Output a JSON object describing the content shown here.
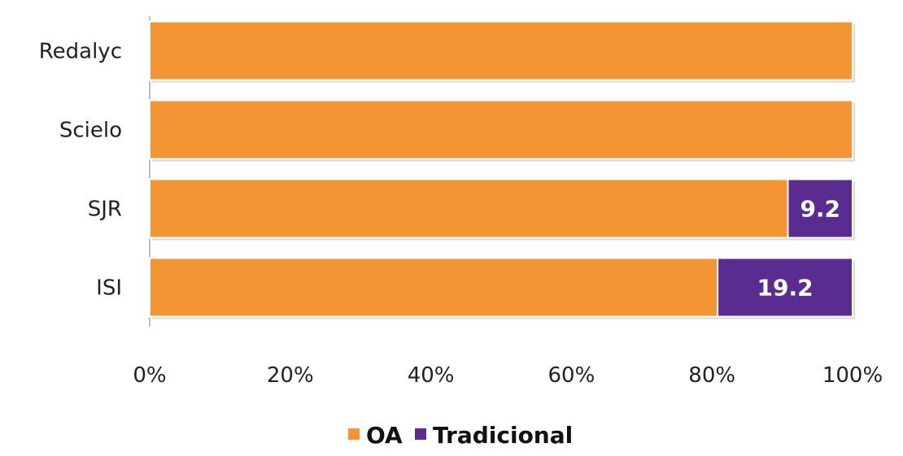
{
  "chart_data": {
    "type": "bar",
    "orientation": "horizontal",
    "stacked": "percent",
    "categories": [
      "Redalyc",
      "Scielo",
      "SJR",
      "ISI"
    ],
    "series": [
      {
        "name": "OA",
        "color": "#F39533",
        "values": [
          100,
          100,
          90.8,
          80.8
        ]
      },
      {
        "name": "Tradicional",
        "color": "#5B2C8F",
        "values": [
          0,
          0,
          9.2,
          19.2
        ]
      }
    ],
    "data_labels": [
      "",
      "",
      "9.2",
      "19.2"
    ],
    "x_ticks": [
      "0%",
      "20%",
      "40%",
      "60%",
      "80%",
      "100%"
    ],
    "xlim": [
      0,
      100
    ],
    "grid": false,
    "legend_position": "bottom",
    "title": "",
    "xlabel": "",
    "ylabel": ""
  }
}
